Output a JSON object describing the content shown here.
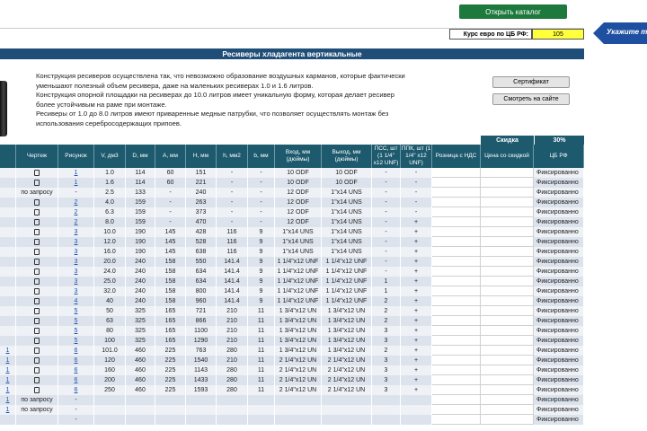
{
  "toolbar": {
    "catalog_button": "Открыть каталог",
    "rate_label": "Курс евро по ЦБ РФ:",
    "rate_value": "105",
    "hint": "Укажите те"
  },
  "title": "Ресиверы хладагента вертикальные",
  "description": [
    "Конструкция ресиверов                          осуществлена так, что невозможно образование воздушных карманов, которые фактически уменьшают полезный объем ресивера, даже на маленьких ресиверах 1.0 и 1.6 литров.",
    "Конструкция опорной площадки на ресиверах до 10.0 литров имеет уникальную форму, которая делает ресивер более устойчивым на раме при монтаже.",
    "Ресиверы от 1.0 до 8.0 литров имеют приваренные медные патрубки, что позволяет осуществлять монтаж без использования серебросодержащих припоев."
  ],
  "buttons": [
    "Сертификат",
    "Смотреть на сайте"
  ],
  "discount": {
    "label": "Скидка",
    "value": "30%"
  },
  "table": {
    "header": [
      null,
      "Чертеж",
      "Рисунок",
      "V, дм3",
      "D, мм",
      "A, мм",
      "H, мм",
      "h, мм2",
      "b, мм",
      "Вход, мм (дюймы)",
      "Выход, мм (дюймы)",
      "ПСС, шт (1 1/4\" x12 UNF)",
      "ППК, шт (1 1/4\" x12 UNF)",
      "Розница с НДС",
      "Цена со скидкой",
      "ЦБ РФ"
    ],
    "rows": [
      [
        null,
        true,
        "1",
        "1.0",
        "114",
        "60",
        "151",
        "-",
        "-",
        "10 ODF",
        "10 ODF",
        "-",
        "-",
        null,
        null,
        "Фиксированно"
      ],
      [
        null,
        true,
        "1",
        "1.6",
        "114",
        "60",
        "221",
        "-",
        "-",
        "10 ODF",
        "10 ODF",
        "-",
        "-",
        null,
        null,
        "Фиксированно"
      ],
      [
        null,
        "по запросу",
        "-",
        "2.5",
        "133",
        "-",
        "240",
        "-",
        "-",
        "12 ODF",
        "1\"x14 UNS",
        "-",
        "-",
        null,
        null,
        "Фиксированно"
      ],
      [
        null,
        true,
        "2",
        "4.0",
        "159",
        "-",
        "263",
        "-",
        "-",
        "12 ODF",
        "1\"x14 UNS",
        "-",
        "-",
        null,
        null,
        "Фиксированно"
      ],
      [
        null,
        true,
        "2",
        "6.3",
        "159",
        "-",
        "373",
        "-",
        "-",
        "12 ODF",
        "1\"x14 UNS",
        "-",
        "-",
        null,
        null,
        "Фиксированно"
      ],
      [
        null,
        true,
        "2",
        "8.0",
        "159",
        "-",
        "470",
        "-",
        "-",
        "12 ODF",
        "1\"x14 UNS",
        "-",
        "+",
        null,
        null,
        "Фиксированно"
      ],
      [
        null,
        true,
        "3",
        "10.0",
        "190",
        "145",
        "428",
        "116",
        "9",
        "1\"x14 UNS",
        "1\"x14 UNS",
        "-",
        "+",
        null,
        null,
        "Фиксированно"
      ],
      [
        null,
        true,
        "3",
        "12.0",
        "190",
        "145",
        "528",
        "116",
        "9",
        "1\"x14 UNS",
        "1\"x14 UNS",
        "-",
        "+",
        null,
        null,
        "Фиксированно"
      ],
      [
        null,
        true,
        "3",
        "16.0",
        "190",
        "145",
        "638",
        "116",
        "9",
        "1\"x14 UNS",
        "1\"x14 UNS",
        "-",
        "+",
        null,
        null,
        "Фиксированно"
      ],
      [
        null,
        true,
        "3",
        "20.0",
        "240",
        "158",
        "550",
        "141.4",
        "9",
        "1 1/4\"x12 UNF",
        "1 1/4\"x12 UNF",
        "-",
        "+",
        null,
        null,
        "Фиксированно"
      ],
      [
        null,
        true,
        "3",
        "24.0",
        "240",
        "158",
        "634",
        "141.4",
        "9",
        "1 1/4\"x12 UNF",
        "1 1/4\"x12 UNF",
        "-",
        "+",
        null,
        null,
        "Фиксированно"
      ],
      [
        null,
        true,
        "3",
        "25.0",
        "240",
        "158",
        "634",
        "141.4",
        "9",
        "1 1/4\"x12 UNF",
        "1 1/4\"x12 UNF",
        "1",
        "+",
        null,
        null,
        "Фиксированно"
      ],
      [
        null,
        true,
        "3",
        "32.0",
        "240",
        "158",
        "800",
        "141.4",
        "9",
        "1 1/4\"x12 UNF",
        "1 1/4\"x12 UNF",
        "1",
        "+",
        null,
        null,
        "Фиксированно"
      ],
      [
        null,
        true,
        "4",
        "40",
        "240",
        "158",
        "960",
        "141.4",
        "9",
        "1 1/4\"x12 UNF",
        "1 1/4\"x12 UNF",
        "2",
        "+",
        null,
        null,
        "Фиксированно"
      ],
      [
        null,
        true,
        "5",
        "50",
        "325",
        "165",
        "721",
        "210",
        "11",
        "1 3/4\"x12 UN",
        "1 3/4\"x12 UN",
        "2",
        "+",
        null,
        null,
        "Фиксированно"
      ],
      [
        null,
        true,
        "5",
        "63",
        "325",
        "165",
        "866",
        "210",
        "11",
        "1 3/4\"x12 UN",
        "1 3/4\"x12 UN",
        "2",
        "+",
        null,
        null,
        "Фиксированно"
      ],
      [
        null,
        true,
        "5",
        "80",
        "325",
        "165",
        "1100",
        "210",
        "11",
        "1 3/4\"x12 UN",
        "1 3/4\"x12 UN",
        "3",
        "+",
        null,
        null,
        "Фиксированно"
      ],
      [
        null,
        true,
        "5",
        "100",
        "325",
        "165",
        "1290",
        "210",
        "11",
        "1 3/4\"x12 UN",
        "1 3/4\"x12 UN",
        "3",
        "+",
        null,
        null,
        "Фиксированно"
      ],
      [
        "1",
        true,
        "6",
        "101.0",
        "460",
        "225",
        "763",
        "280",
        "11",
        "1 3/4\"x12 UN",
        "1 3/4\"x12 UN",
        "2",
        "+",
        null,
        null,
        "Фиксированно"
      ],
      [
        "1",
        true,
        "6",
        "120",
        "460",
        "225",
        "1540",
        "210",
        "11",
        "2 1/4\"x12 UN",
        "2 1/4\"x12 UN",
        "3",
        "+",
        null,
        null,
        "Фиксированно"
      ],
      [
        "1",
        true,
        "6",
        "160",
        "460",
        "225",
        "1143",
        "280",
        "11",
        "2 1/4\"x12 UN",
        "2 1/4\"x12 UN",
        "3",
        "+",
        null,
        null,
        "Фиксированно"
      ],
      [
        "1",
        true,
        "6",
        "200",
        "460",
        "225",
        "1433",
        "280",
        "11",
        "2 1/4\"x12 UN",
        "2 1/4\"x12 UN",
        "3",
        "+",
        null,
        null,
        "Фиксированно"
      ],
      [
        "1",
        true,
        "6",
        "250",
        "460",
        "225",
        "1593",
        "280",
        "11",
        "2 1/4\"x12 UN",
        "2 1/4\"x12 UN",
        "3",
        "+",
        null,
        null,
        "Фиксированно"
      ],
      [
        "1",
        "по запросу",
        "-",
        null,
        null,
        null,
        null,
        null,
        null,
        null,
        null,
        null,
        null,
        null,
        null,
        "Фиксированно"
      ],
      [
        "1",
        "по запросу",
        "-",
        null,
        null,
        null,
        null,
        null,
        null,
        null,
        null,
        null,
        null,
        null,
        null,
        "Фиксированно"
      ],
      [
        null,
        null,
        "-",
        null,
        null,
        null,
        null,
        null,
        null,
        null,
        null,
        null,
        null,
        null,
        null,
        "Фиксированно"
      ]
    ]
  }
}
